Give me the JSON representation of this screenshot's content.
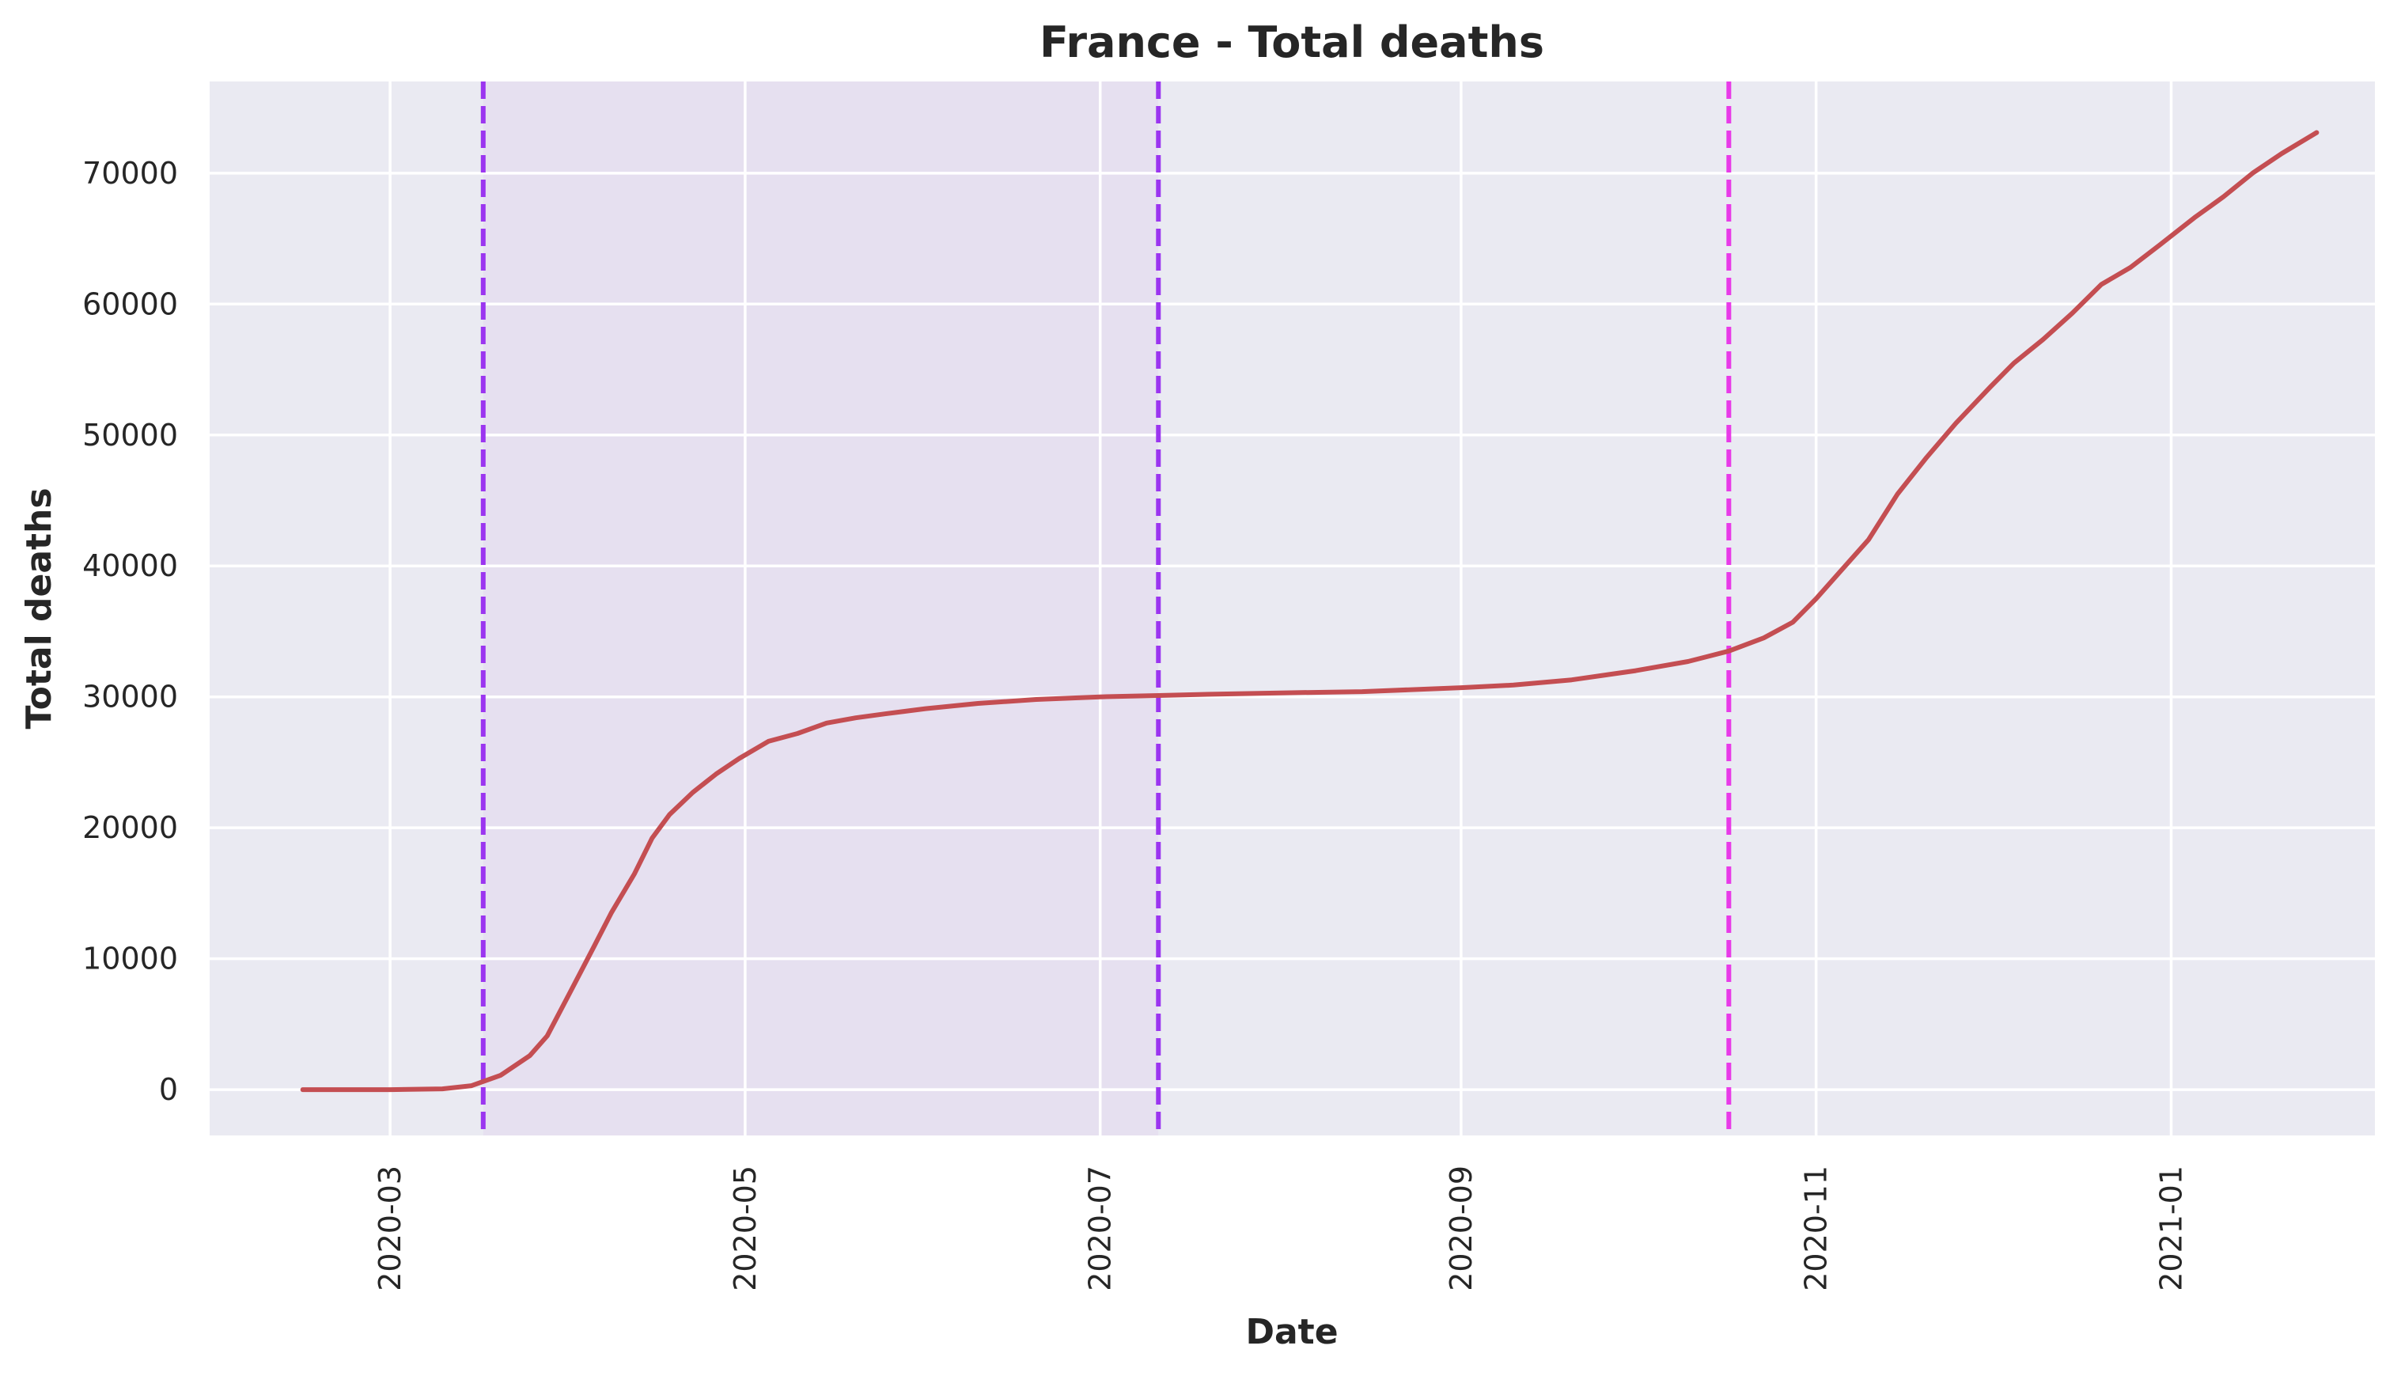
{
  "chart_data": {
    "type": "line",
    "title": "France - Total deaths",
    "xlabel": "Date",
    "ylabel": "Total deaths",
    "xlim": [
      "2020-01-30",
      "2021-02-05"
    ],
    "ylim": [
      -3500,
      77000
    ],
    "grid": true,
    "x_ticks": [
      "2020-03",
      "2020-05",
      "2020-07",
      "2020-09",
      "2020-11",
      "2021-01"
    ],
    "y_ticks": [
      0,
      10000,
      20000,
      30000,
      40000,
      50000,
      60000,
      70000
    ],
    "y_tick_labels": [
      "0",
      "10000",
      "20000",
      "30000",
      "40000",
      "50000",
      "60000",
      "70000"
    ],
    "shaded_region": {
      "start": "2020-03-17",
      "end": "2020-07-11",
      "color": "#e6e0f0"
    },
    "vertical_lines": [
      {
        "date": "2020-03-17",
        "color": "#9b35f0",
        "style": "dashed"
      },
      {
        "date": "2020-07-11",
        "color": "#9b35f0",
        "style": "dashed"
      },
      {
        "date": "2020-10-17",
        "color": "#e83ae8",
        "style": "dashed"
      }
    ],
    "series": [
      {
        "name": "Total deaths",
        "color": "#c44e52",
        "x": [
          "2020-02-15",
          "2020-03-01",
          "2020-03-10",
          "2020-03-15",
          "2020-03-20",
          "2020-03-25",
          "2020-03-28",
          "2020-04-01",
          "2020-04-05",
          "2020-04-08",
          "2020-04-12",
          "2020-04-15",
          "2020-04-18",
          "2020-04-22",
          "2020-04-26",
          "2020-04-30",
          "2020-05-05",
          "2020-05-10",
          "2020-05-15",
          "2020-05-20",
          "2020-05-25",
          "2020-06-01",
          "2020-06-10",
          "2020-06-20",
          "2020-07-01",
          "2020-07-11",
          "2020-07-20",
          "2020-08-01",
          "2020-08-15",
          "2020-09-01",
          "2020-09-10",
          "2020-09-20",
          "2020-10-01",
          "2020-10-10",
          "2020-10-17",
          "2020-10-23",
          "2020-10-28",
          "2020-11-01",
          "2020-11-05",
          "2020-11-10",
          "2020-11-15",
          "2020-11-20",
          "2020-11-25",
          "2020-12-01",
          "2020-12-05",
          "2020-12-10",
          "2020-12-15",
          "2020-12-20",
          "2020-12-25",
          "2020-12-30",
          "2021-01-05",
          "2021-01-10",
          "2021-01-15",
          "2021-01-20",
          "2021-01-26"
        ],
        "values": [
          0,
          0,
          60,
          300,
          1100,
          2600,
          4100,
          7500,
          10900,
          13500,
          16500,
          19200,
          21000,
          22700,
          24100,
          25300,
          26600,
          27200,
          28000,
          28400,
          28700,
          29100,
          29500,
          29800,
          30000,
          30100,
          30200,
          30300,
          30400,
          30700,
          30900,
          31300,
          32000,
          32700,
          33500,
          34500,
          35700,
          37500,
          39500,
          42000,
          45500,
          48300,
          50900,
          53700,
          55500,
          57300,
          59300,
          61500,
          62800,
          64500,
          66600,
          68200,
          70000,
          71500,
          73100
        ]
      }
    ]
  }
}
